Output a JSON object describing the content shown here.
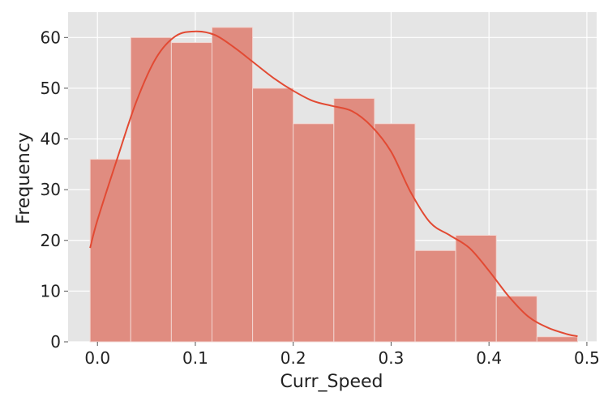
{
  "chart_data": {
    "type": "bar",
    "style": "histogram with kde overlay",
    "title": "",
    "xlabel": "Curr_Speed",
    "ylabel": "Frequency",
    "xlim": [
      -0.03,
      0.51
    ],
    "ylim": [
      0,
      65
    ],
    "grid": true,
    "legend": "none",
    "x_ticks": [
      0.0,
      0.1,
      0.2,
      0.3,
      0.4,
      0.5
    ],
    "x_tick_labels": [
      "0.0",
      "0.1",
      "0.2",
      "0.3",
      "0.4",
      "0.5"
    ],
    "y_ticks": [
      0,
      10,
      20,
      30,
      40,
      50,
      60
    ],
    "y_tick_labels": [
      "0",
      "10",
      "20",
      "30",
      "40",
      "50",
      "60"
    ],
    "bins": [
      {
        "x0": -0.0075,
        "x1": 0.034,
        "count": 36
      },
      {
        "x0": 0.034,
        "x1": 0.0755,
        "count": 60
      },
      {
        "x0": 0.0755,
        "x1": 0.117,
        "count": 59
      },
      {
        "x0": 0.117,
        "x1": 0.1585,
        "count": 62
      },
      {
        "x0": 0.1585,
        "x1": 0.2,
        "count": 50
      },
      {
        "x0": 0.2,
        "x1": 0.2415,
        "count": 43
      },
      {
        "x0": 0.2415,
        "x1": 0.283,
        "count": 48
      },
      {
        "x0": 0.283,
        "x1": 0.3245,
        "count": 43
      },
      {
        "x0": 0.3245,
        "x1": 0.366,
        "count": 18
      },
      {
        "x0": 0.366,
        "x1": 0.4075,
        "count": 21
      },
      {
        "x0": 0.4075,
        "x1": 0.449,
        "count": 9
      },
      {
        "x0": 0.449,
        "x1": 0.4905,
        "count": 1
      }
    ],
    "kde": {
      "x": [
        -0.0075,
        0.0,
        0.02,
        0.04,
        0.06,
        0.08,
        0.1,
        0.12,
        0.14,
        0.16,
        0.18,
        0.2,
        0.22,
        0.24,
        0.26,
        0.28,
        0.3,
        0.32,
        0.34,
        0.36,
        0.38,
        0.4,
        0.42,
        0.44,
        0.46,
        0.48,
        0.4905
      ],
      "y": [
        18.5,
        24,
        36,
        47.5,
        56,
        60.3,
        61.2,
        60.5,
        58,
        55,
        52,
        49.5,
        47.5,
        46.5,
        45.5,
        42.5,
        37.5,
        29.5,
        23.5,
        21,
        18.5,
        14,
        9,
        5,
        2.8,
        1.5,
        1.1
      ]
    },
    "colors": {
      "bar_fill": "#e08c80",
      "bar_edge": "#f2d4cf",
      "kde_line": "#e24a33",
      "plot_bg": "#e5e5e5",
      "grid": "#ffffff"
    }
  }
}
